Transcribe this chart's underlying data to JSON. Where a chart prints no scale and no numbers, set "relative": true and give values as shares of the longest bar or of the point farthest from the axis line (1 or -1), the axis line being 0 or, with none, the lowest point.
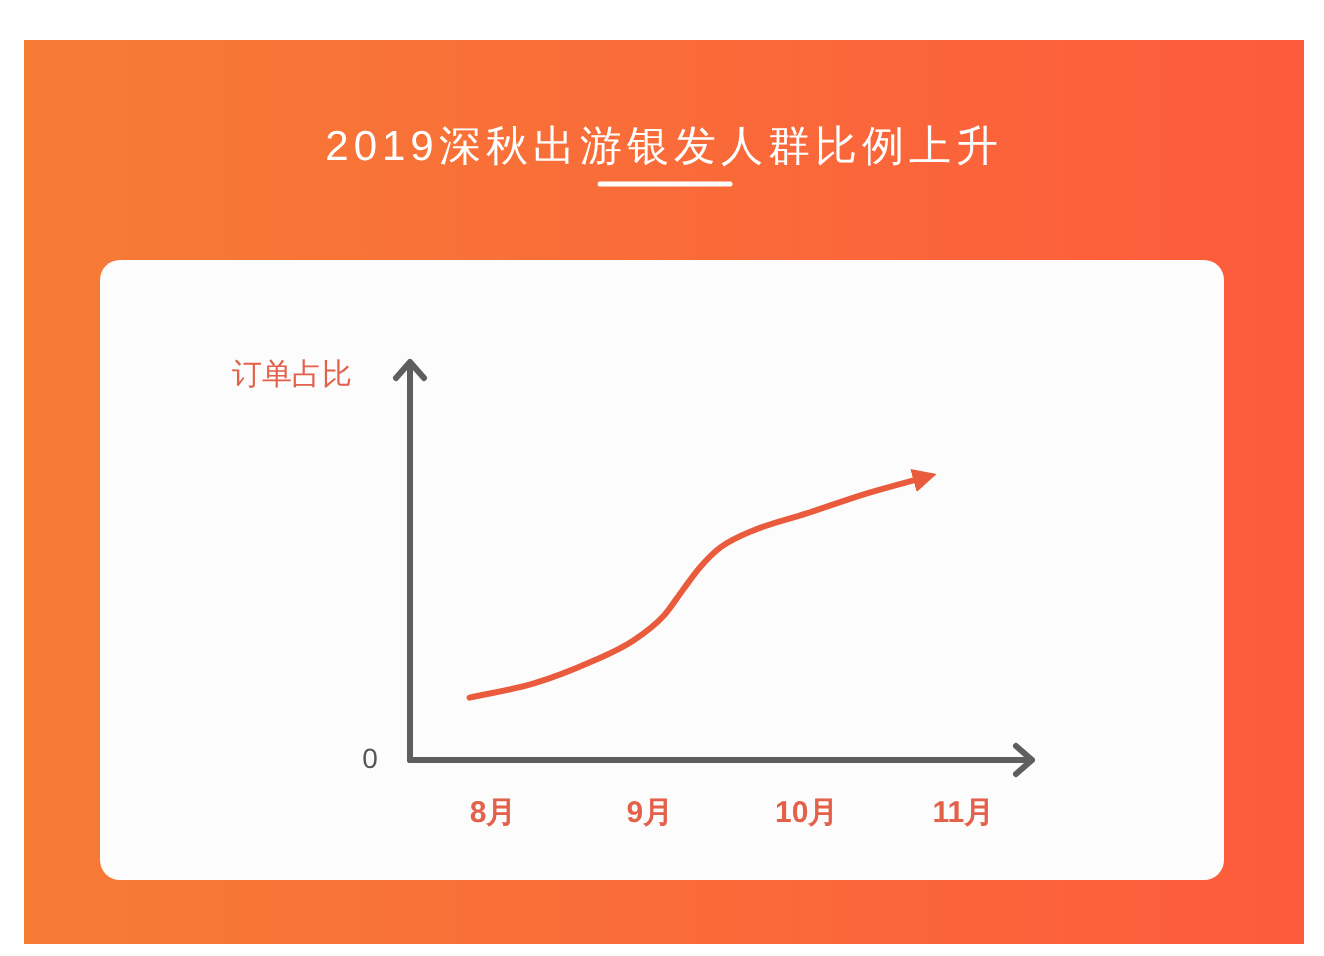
{
  "chart_data": {
    "type": "line",
    "title": "2019深秋出游银发人群比例上升",
    "ylabel": "订单占比",
    "annotations": [
      "0"
    ],
    "relative": true,
    "x": [
      7.85,
      8.26,
      8.64,
      8.89,
      9.09,
      9.21,
      9.32,
      9.45,
      9.66,
      10.0,
      10.38,
      10.77
    ],
    "xlim": [
      7.47,
      11.45
    ],
    "xticks": [
      {
        "value": 8,
        "label": "8月"
      },
      {
        "value": 9,
        "label": "9月"
      },
      {
        "value": 10,
        "label": "10月"
      },
      {
        "value": 11,
        "label": "11月"
      }
    ],
    "series": [
      {
        "color": "#ea5a3c",
        "values": [
          0.22,
          0.27,
          0.35,
          0.42,
          0.51,
          0.6,
          0.68,
          0.75,
          0.81,
          0.87,
          0.94,
          1
        ]
      }
    ],
    "marker": "none",
    "line_style": "solid"
  }
}
